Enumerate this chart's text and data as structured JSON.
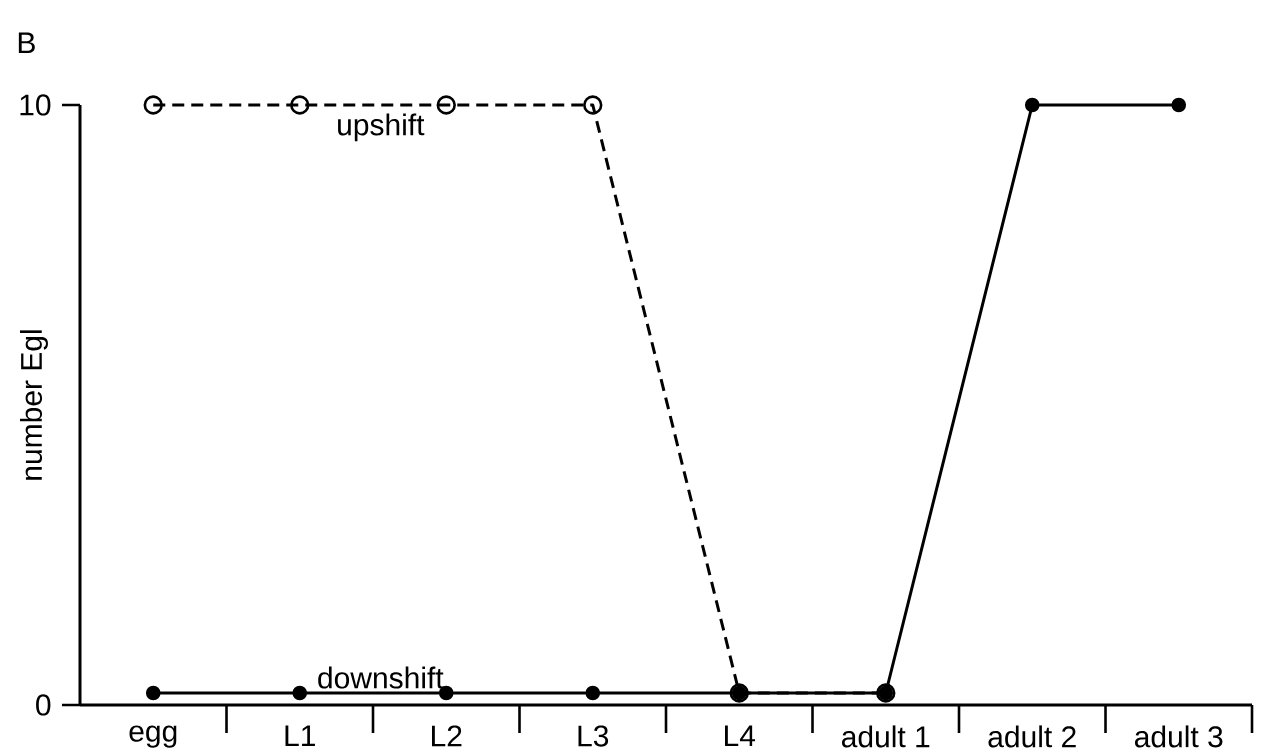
{
  "chart_data": {
    "type": "line",
    "annotations": [
      "B"
    ],
    "ylabel": "number Egl",
    "categories": [
      "egg",
      "L1",
      "L2",
      "L3",
      "L4",
      "adult 1",
      "adult 2",
      "adult 3"
    ],
    "ylim": [
      0,
      10
    ],
    "yticks": [
      0,
      10
    ],
    "marker": "circle",
    "legend": false,
    "series": [
      {
        "name": "upshift",
        "color": "#000000",
        "line_style": "dashed",
        "values": [
          10,
          10,
          10,
          10,
          0.2,
          0.2,
          null,
          null
        ]
      },
      {
        "name": "downshift",
        "color": "#000000",
        "line_style": "solid",
        "values": [
          0.2,
          0.2,
          0.2,
          0.2,
          0.2,
          0.2,
          10,
          10
        ]
      }
    ]
  }
}
